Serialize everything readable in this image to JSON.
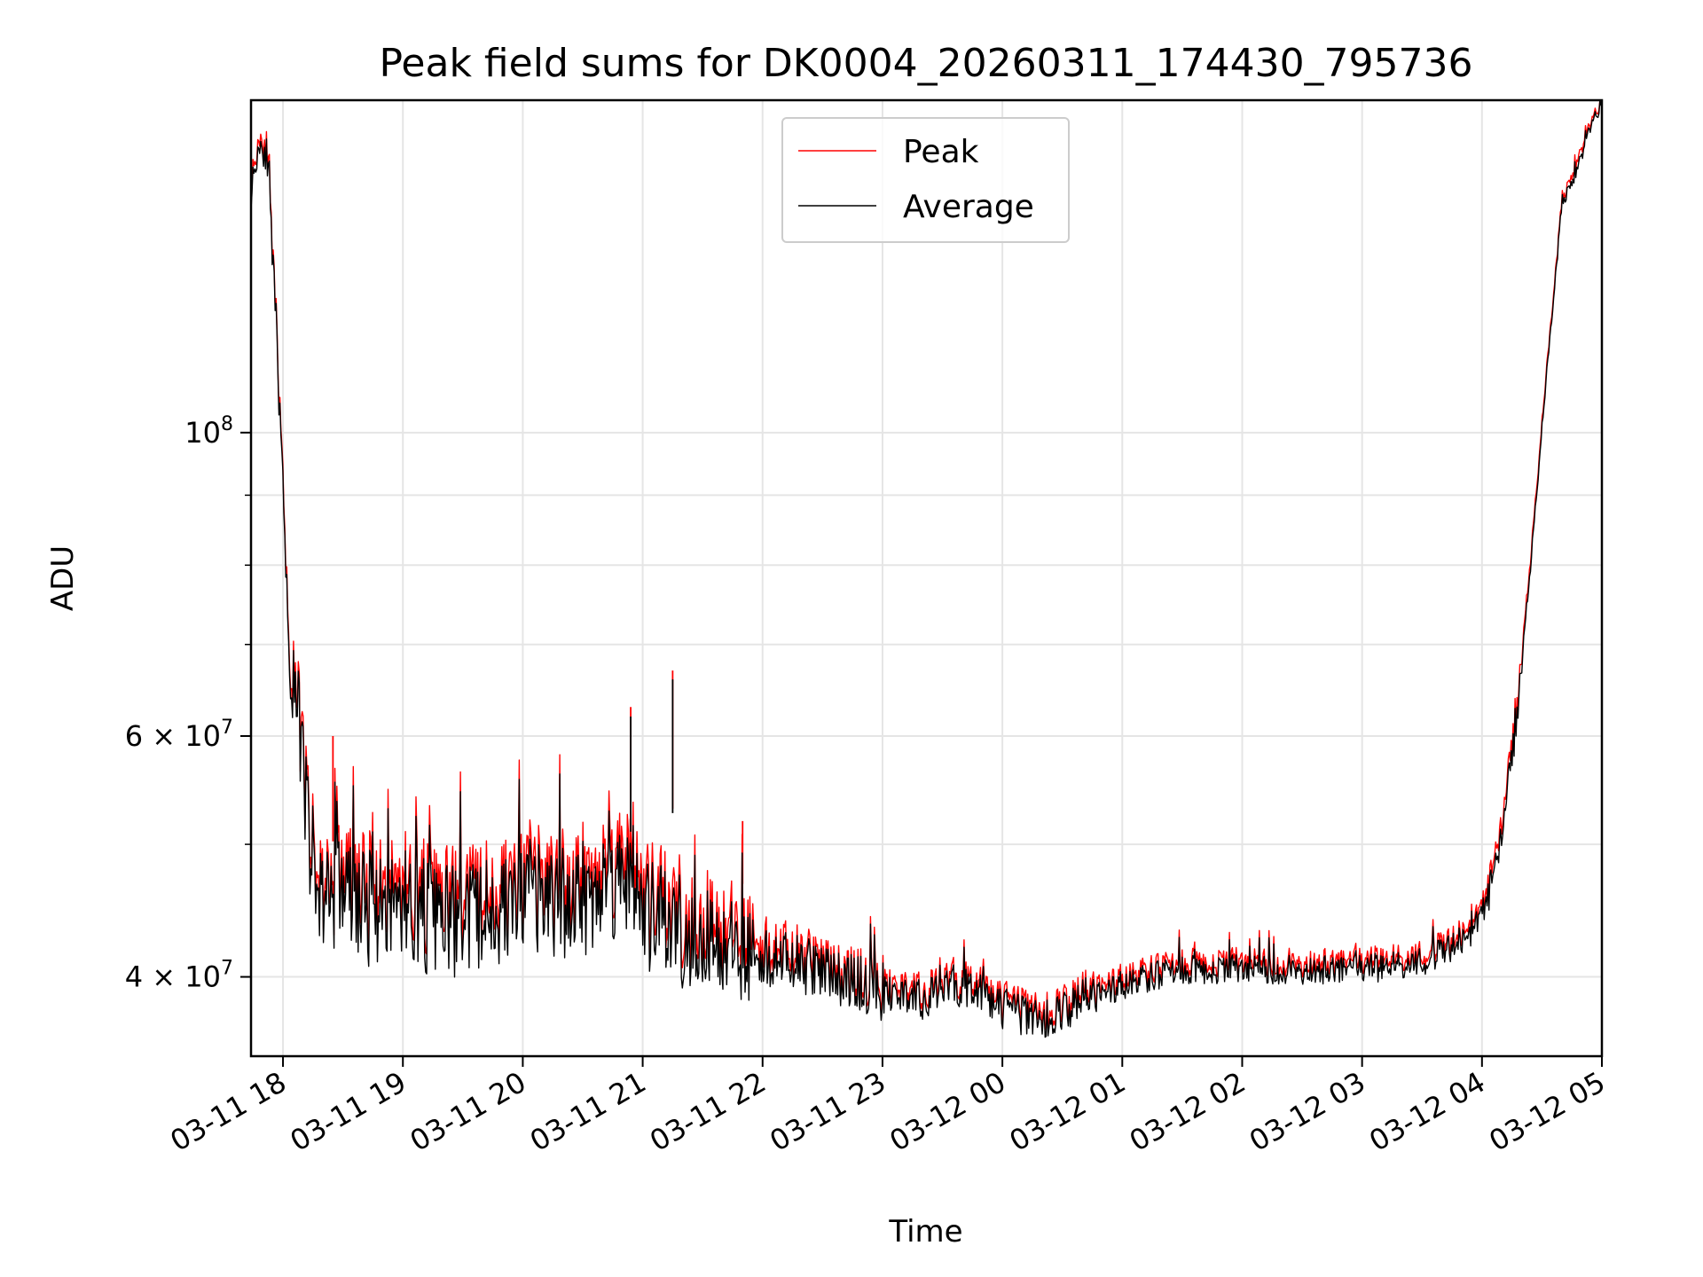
{
  "chart_data": {
    "type": "line",
    "title": "Peak field sums for DK0004_20260311_174430_795736",
    "xlabel": "Time",
    "ylabel": "ADU",
    "yscale": "log",
    "ylim": [
      35000000,
      175000000
    ],
    "xlim": [
      "2026-03-11 17:44",
      "2026-03-12 05:00"
    ],
    "grid": true,
    "legend_position": "upper center",
    "x_tick_labels": [
      "03-11 18",
      "03-11 19",
      "03-11 20",
      "03-11 21",
      "03-11 22",
      "03-11 23",
      "03-12 00",
      "03-12 01",
      "03-12 02",
      "03-12 03",
      "03-12 04",
      "03-12 05"
    ],
    "x_ticks": [
      "2026-03-11 18:00",
      "2026-03-11 19:00",
      "2026-03-11 20:00",
      "2026-03-11 21:00",
      "2026-03-11 22:00",
      "2026-03-11 23:00",
      "2026-03-12 00:00",
      "2026-03-12 01:00",
      "2026-03-12 02:00",
      "2026-03-12 03:00",
      "2026-03-12 04:00",
      "2026-03-12 05:00"
    ],
    "y_tick_labels": [
      {
        "value": 40000000,
        "mantissa": "4",
        "exp": "7",
        "text": "4 × 10^7"
      },
      {
        "value": 60000000,
        "mantissa": "6",
        "exp": "7",
        "text": "6 × 10^7"
      },
      {
        "value": 100000000,
        "mantissa": "",
        "exp": "8",
        "text": "10^8"
      }
    ],
    "y_minor_ticks": [
      50000000,
      70000000,
      80000000,
      90000000
    ],
    "series": [
      {
        "name": "Peak",
        "color": "#ff0000",
        "x": [
          "2026-03-11 17:44",
          "2026-03-11 17:48",
          "2026-03-11 17:52",
          "2026-03-11 17:56",
          "2026-03-11 18:00",
          "2026-03-11 18:04",
          "2026-03-11 18:08",
          "2026-03-11 18:12",
          "2026-03-11 18:16",
          "2026-03-11 18:20",
          "2026-03-11 18:25",
          "2026-03-11 18:30",
          "2026-03-11 18:40",
          "2026-03-11 19:00",
          "2026-03-11 19:20",
          "2026-03-11 19:40",
          "2026-03-11 20:00",
          "2026-03-11 20:20",
          "2026-03-11 20:40",
          "2026-03-11 20:54",
          "2026-03-11 21:00",
          "2026-03-11 21:15",
          "2026-03-11 21:30",
          "2026-03-11 21:45",
          "2026-03-11 22:00",
          "2026-03-11 22:20",
          "2026-03-11 22:40",
          "2026-03-11 23:00",
          "2026-03-11 23:20",
          "2026-03-11 23:40",
          "2026-03-12 00:00",
          "2026-03-12 00:20",
          "2026-03-12 00:40",
          "2026-03-12 01:00",
          "2026-03-12 01:30",
          "2026-03-12 02:00",
          "2026-03-12 02:30",
          "2026-03-12 03:00",
          "2026-03-12 03:30",
          "2026-03-12 03:50",
          "2026-03-12 04:00",
          "2026-03-12 04:08",
          "2026-03-12 04:16",
          "2026-03-12 04:24",
          "2026-03-12 04:32",
          "2026-03-12 04:40",
          "2026-03-12 04:48",
          "2026-03-12 04:54",
          "2026-03-12 05:00"
        ],
        "values": [
          152000000,
          165000000,
          162000000,
          125000000,
          92000000,
          65000000,
          62000000,
          54000000,
          48000000,
          47000000,
          47500000,
          48000000,
          46500000,
          47000000,
          45500000,
          46000000,
          47000000,
          47000000,
          48000000,
          50000000,
          46000000,
          45000000,
          44500000,
          43500000,
          42500000,
          41500000,
          40500000,
          39500000,
          39000000,
          40000000,
          38500000,
          37500000,
          39000000,
          40000000,
          41000000,
          41000000,
          41000000,
          41000000,
          41500000,
          43000000,
          44500000,
          50000000,
          60000000,
          80000000,
          110000000,
          148000000,
          158000000,
          168000000,
          175000000
        ],
        "spikes": [
          {
            "x": "2026-03-11 20:54",
            "value": 63000000
          },
          {
            "x": "2026-03-11 21:15",
            "value": 67000000
          },
          {
            "x": "2026-03-11 21:50",
            "value": 52000000
          },
          {
            "x": "2026-03-11 18:25",
            "value": 60000000
          }
        ]
      },
      {
        "name": "Average",
        "color": "#000000",
        "x": [
          "2026-03-11 17:44",
          "2026-03-11 17:48",
          "2026-03-11 17:52",
          "2026-03-11 17:56",
          "2026-03-11 18:00",
          "2026-03-11 18:04",
          "2026-03-11 18:08",
          "2026-03-11 18:12",
          "2026-03-11 18:16",
          "2026-03-11 18:20",
          "2026-03-11 18:25",
          "2026-03-11 18:30",
          "2026-03-11 18:40",
          "2026-03-11 19:00",
          "2026-03-11 19:20",
          "2026-03-11 19:40",
          "2026-03-11 20:00",
          "2026-03-11 20:20",
          "2026-03-11 20:40",
          "2026-03-11 20:54",
          "2026-03-11 21:00",
          "2026-03-11 21:15",
          "2026-03-11 21:30",
          "2026-03-11 21:45",
          "2026-03-11 22:00",
          "2026-03-11 22:20",
          "2026-03-11 22:40",
          "2026-03-11 23:00",
          "2026-03-11 23:20",
          "2026-03-11 23:40",
          "2026-03-12 00:00",
          "2026-03-12 00:20",
          "2026-03-12 00:40",
          "2026-03-12 01:00",
          "2026-03-12 01:30",
          "2026-03-12 02:00",
          "2026-03-12 02:30",
          "2026-03-12 03:00",
          "2026-03-12 03:30",
          "2026-03-12 03:50",
          "2026-03-12 04:00",
          "2026-03-12 04:08",
          "2026-03-12 04:16",
          "2026-03-12 04:24",
          "2026-03-12 04:32",
          "2026-03-12 04:40",
          "2026-03-12 04:48",
          "2026-03-12 04:54",
          "2026-03-12 05:00"
        ],
        "values": [
          150000000,
          163000000,
          160000000,
          124000000,
          91000000,
          64000000,
          61000000,
          53000000,
          47000000,
          46000000,
          46500000,
          46500000,
          45000000,
          45500000,
          44000000,
          44500000,
          45500000,
          45500000,
          46500000,
          48000000,
          44500000,
          43500000,
          43000000,
          42000000,
          41500000,
          40800000,
          40000000,
          39000000,
          38500000,
          39500000,
          38000000,
          37000000,
          38500000,
          39500000,
          40500000,
          40500000,
          40500000,
          40500000,
          41000000,
          42500000,
          44000000,
          49000000,
          59000000,
          79000000,
          109000000,
          147000000,
          156000000,
          167000000,
          174000000
        ],
        "spikes": [
          {
            "x": "2026-03-11 20:54",
            "value": 62000000
          },
          {
            "x": "2026-03-11 21:15",
            "value": 66000000
          }
        ]
      }
    ]
  }
}
